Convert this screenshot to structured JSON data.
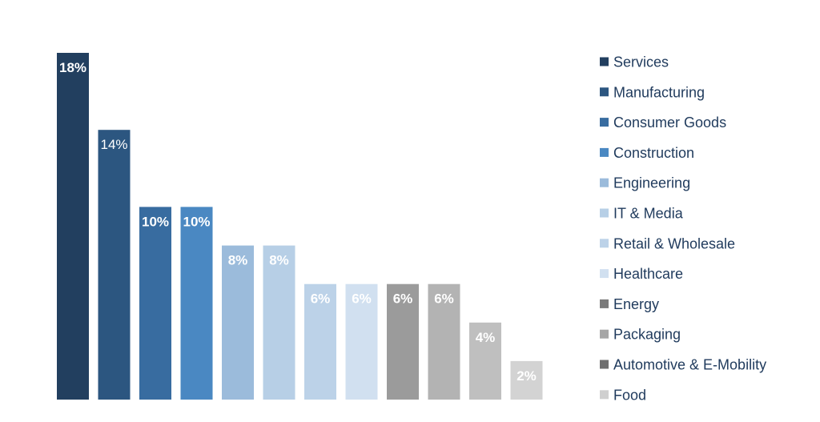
{
  "chart_data": {
    "type": "bar",
    "categories": [
      "Services",
      "Manufacturing",
      "Consumer Goods",
      "Construction",
      "Engineering",
      "IT & Media",
      "Retail & Wholesale",
      "Healthcare",
      "Energy",
      "Packaging",
      "Automotive & E-Mobility",
      "Food"
    ],
    "values": [
      18,
      14,
      10,
      10,
      8,
      8,
      6,
      6,
      6,
      6,
      4,
      2
    ],
    "value_labels": [
      "18%",
      "14%",
      "10%",
      "10%",
      "8%",
      "8%",
      "6%",
      "6%",
      "6%",
      "6%",
      "4%",
      "2%"
    ],
    "colors": [
      "#223f5f",
      "#2c5680",
      "#386ca0",
      "#4a88c2",
      "#9bbbdb",
      "#b7cfe6",
      "#bcd2e8",
      "#d1e0f0",
      "#9b9b9b",
      "#b3b3b3",
      "#bfbfbf",
      "#d3d3d3"
    ],
    "legend_colors": [
      "#223f5f",
      "#2c5680",
      "#386ca0",
      "#4a88c2",
      "#9bbbdb",
      "#b7cfe6",
      "#bcd2e8",
      "#d1e0f0",
      "#7a7a7a",
      "#a6a6a6",
      "#6e6e6e",
      "#cfcfcf"
    ],
    "legend_placement": "right",
    "label_bold": [
      true,
      false,
      true,
      true,
      true,
      true,
      true,
      true,
      true,
      true,
      true,
      true
    ],
    "grid": false,
    "title": "",
    "xlabel": "",
    "ylabel": "",
    "ylim": [
      0,
      18
    ]
  }
}
